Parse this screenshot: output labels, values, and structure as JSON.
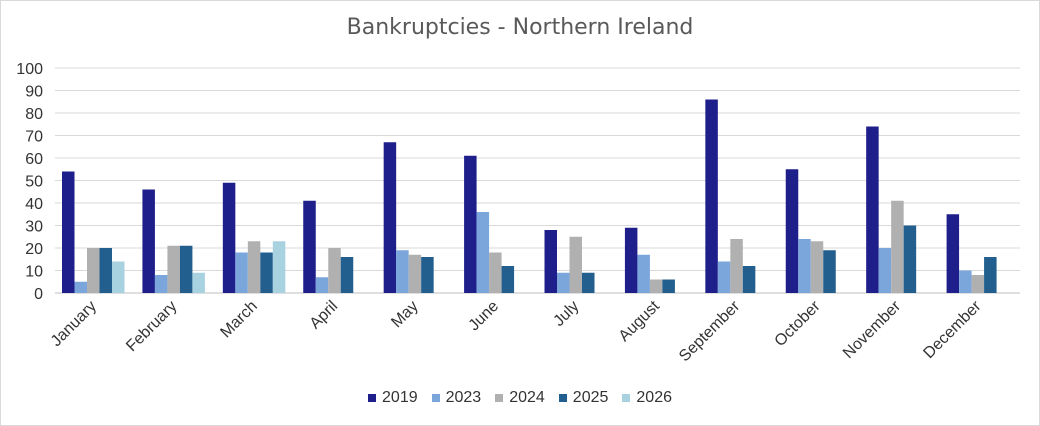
{
  "chart_data": {
    "type": "bar",
    "title": "Bankruptcies - Northern Ireland",
    "xlabel": "",
    "ylabel": "",
    "ylim": [
      0,
      100
    ],
    "yticks": [
      0,
      10,
      20,
      30,
      40,
      50,
      60,
      70,
      80,
      90,
      100
    ],
    "grid": true,
    "legend_position": "bottom",
    "categories": [
      "January",
      "February",
      "March",
      "April",
      "May",
      "June",
      "July",
      "August",
      "September",
      "October",
      "November",
      "December"
    ],
    "series": [
      {
        "name": "2019",
        "color": "#1f1f8c",
        "values": [
          54,
          46,
          49,
          41,
          67,
          61,
          28,
          29,
          86,
          55,
          74,
          35
        ]
      },
      {
        "name": "2023",
        "color": "#7aa6dc",
        "values": [
          5,
          8,
          18,
          7,
          19,
          36,
          9,
          17,
          14,
          24,
          20,
          10
        ]
      },
      {
        "name": "2024",
        "color": "#b0b0b0",
        "values": [
          20,
          21,
          23,
          20,
          17,
          18,
          25,
          6,
          24,
          23,
          41,
          8
        ]
      },
      {
        "name": "2025",
        "color": "#225f8f",
        "values": [
          20,
          21,
          18,
          16,
          16,
          12,
          9,
          6,
          12,
          19,
          30,
          16
        ]
      },
      {
        "name": "2026",
        "color": "#a8d2df",
        "values": [
          14,
          9,
          23,
          null,
          null,
          null,
          null,
          null,
          null,
          null,
          null,
          null
        ]
      }
    ]
  }
}
